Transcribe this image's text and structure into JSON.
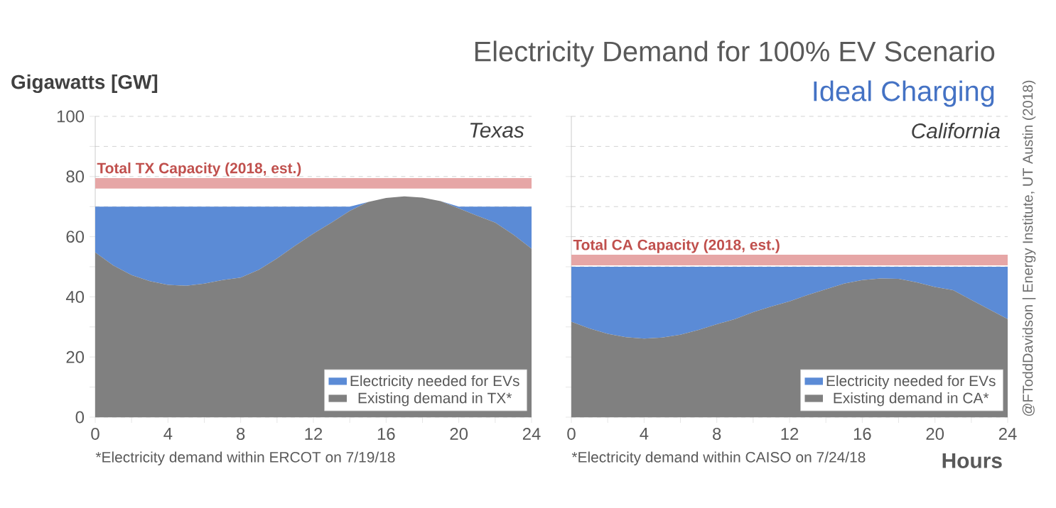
{
  "chart_data": [
    {
      "type": "area",
      "ylabel": "Gigawatts [GW]",
      "stacked": true,
      "x": [
        0,
        1,
        2,
        3,
        4,
        5,
        6,
        7,
        8,
        9,
        10,
        11,
        12,
        13,
        14,
        15,
        16,
        17,
        18,
        19,
        20,
        21,
        22,
        23,
        24
      ],
      "series": [
        {
          "name": "Existing demand in TX*",
          "color": "#808080",
          "values": [
            54.8,
            50.4,
            47.2,
            45.2,
            44,
            43.7,
            44.4,
            45.6,
            46.4,
            49,
            52.8,
            57,
            61,
            64.7,
            68.6,
            71.5,
            72.9,
            73.4,
            73,
            71.8,
            69.4,
            67,
            64.7,
            60.7,
            56
          ]
        },
        {
          "name": "Electricity needed for EVs",
          "color": "#5b8bd6",
          "values": [
            15.2,
            19.6,
            22.8,
            24.8,
            26,
            26.3,
            25.6,
            24.4,
            23.6,
            21,
            17.2,
            13,
            9,
            5.3,
            1.4,
            0,
            0,
            0,
            0,
            0,
            0.6,
            3,
            5.3,
            9.3,
            14
          ]
        }
      ],
      "xlim": [
        0,
        24
      ],
      "xticks": [
        0,
        {
          "value": 2,
          "label": null
        },
        4,
        {
          "value": 6,
          "label": null
        },
        8,
        {
          "value": 10,
          "label": null
        },
        12,
        {
          "value": 14,
          "label": null
        },
        16,
        {
          "value": 18,
          "label": null
        },
        20,
        {
          "value": 22,
          "label": null
        },
        24
      ],
      "ylim": [
        0,
        100
      ],
      "yticks": [
        0,
        {
          "value": 10,
          "label": null
        },
        20,
        {
          "value": 30,
          "label": null
        },
        40,
        {
          "value": 50,
          "label": null
        },
        60,
        {
          "value": 70,
          "label": null
        },
        80,
        {
          "value": 90,
          "label": null
        },
        100
      ],
      "grid": "y",
      "legend": "bottom right",
      "bands": [
        {
          "axis": "y",
          "from": 76,
          "to": 79.5,
          "label": "Total TX Capacity (2018, est.)",
          "color": "#e6a6a6"
        }
      ],
      "annotations": [
        "Texas",
        "*Electricity demand within ERCOT on 7/19/18"
      ]
    },
    {
      "type": "area",
      "title": "Electricity Demand for 100% EV Scenario",
      "subtitle": "Ideal Charging",
      "xlabel": "Hours",
      "stacked": true,
      "x": [
        0,
        1,
        2,
        3,
        4,
        5,
        6,
        7,
        8,
        9,
        10,
        11,
        12,
        13,
        14,
        15,
        16,
        17,
        18,
        19,
        20,
        21,
        22,
        23,
        24
      ],
      "series": [
        {
          "name": "Existing demand in CA*",
          "color": "#808080",
          "values": [
            31.7,
            29.5,
            27.7,
            26.6,
            26.1,
            26.5,
            27.4,
            29,
            30.9,
            32.6,
            34.9,
            36.8,
            38.5,
            40.6,
            42.5,
            44.4,
            45.6,
            46.1,
            46,
            44.8,
            43.3,
            42.2,
            39,
            35.8,
            32.6
          ]
        },
        {
          "name": "Electricity needed for EVs",
          "color": "#5b8bd6",
          "values": [
            18.3,
            20.5,
            22.3,
            23.4,
            23.9,
            23.5,
            22.6,
            21,
            19.1,
            17.4,
            15.1,
            13.2,
            11.5,
            9.4,
            7.5,
            5.6,
            4.4,
            3.9,
            4,
            5.2,
            6.7,
            7.8,
            11,
            14.2,
            17.4
          ]
        }
      ],
      "xlim": [
        0,
        24
      ],
      "xticks": [
        0,
        {
          "value": 2,
          "label": null
        },
        4,
        {
          "value": 6,
          "label": null
        },
        8,
        {
          "value": 10,
          "label": null
        },
        12,
        {
          "value": 14,
          "label": null
        },
        16,
        {
          "value": 18,
          "label": null
        },
        20,
        {
          "value": 22,
          "label": null
        },
        24
      ],
      "ylim": [
        0,
        100
      ],
      "yticks": [
        0,
        {
          "value": 10,
          "label": null
        },
        20,
        {
          "value": 30,
          "label": null
        },
        40,
        {
          "value": 50,
          "label": null
        },
        60,
        {
          "value": 70,
          "label": null
        },
        80,
        {
          "value": 90,
          "label": null
        },
        100
      ],
      "grid": "y",
      "legend": "bottom right",
      "tick_labels": "x",
      "bands": [
        {
          "axis": "y",
          "from": 50.5,
          "to": 54,
          "label": "Total CA Capacity (2018, est.)",
          "color": "#e6a6a6"
        }
      ],
      "annotations": [
        "California",
        "*Electricity demand within CAISO on 7/24/18",
        "@FToddDavidson | Energy Institute, UT Austin (2018)"
      ]
    }
  ]
}
